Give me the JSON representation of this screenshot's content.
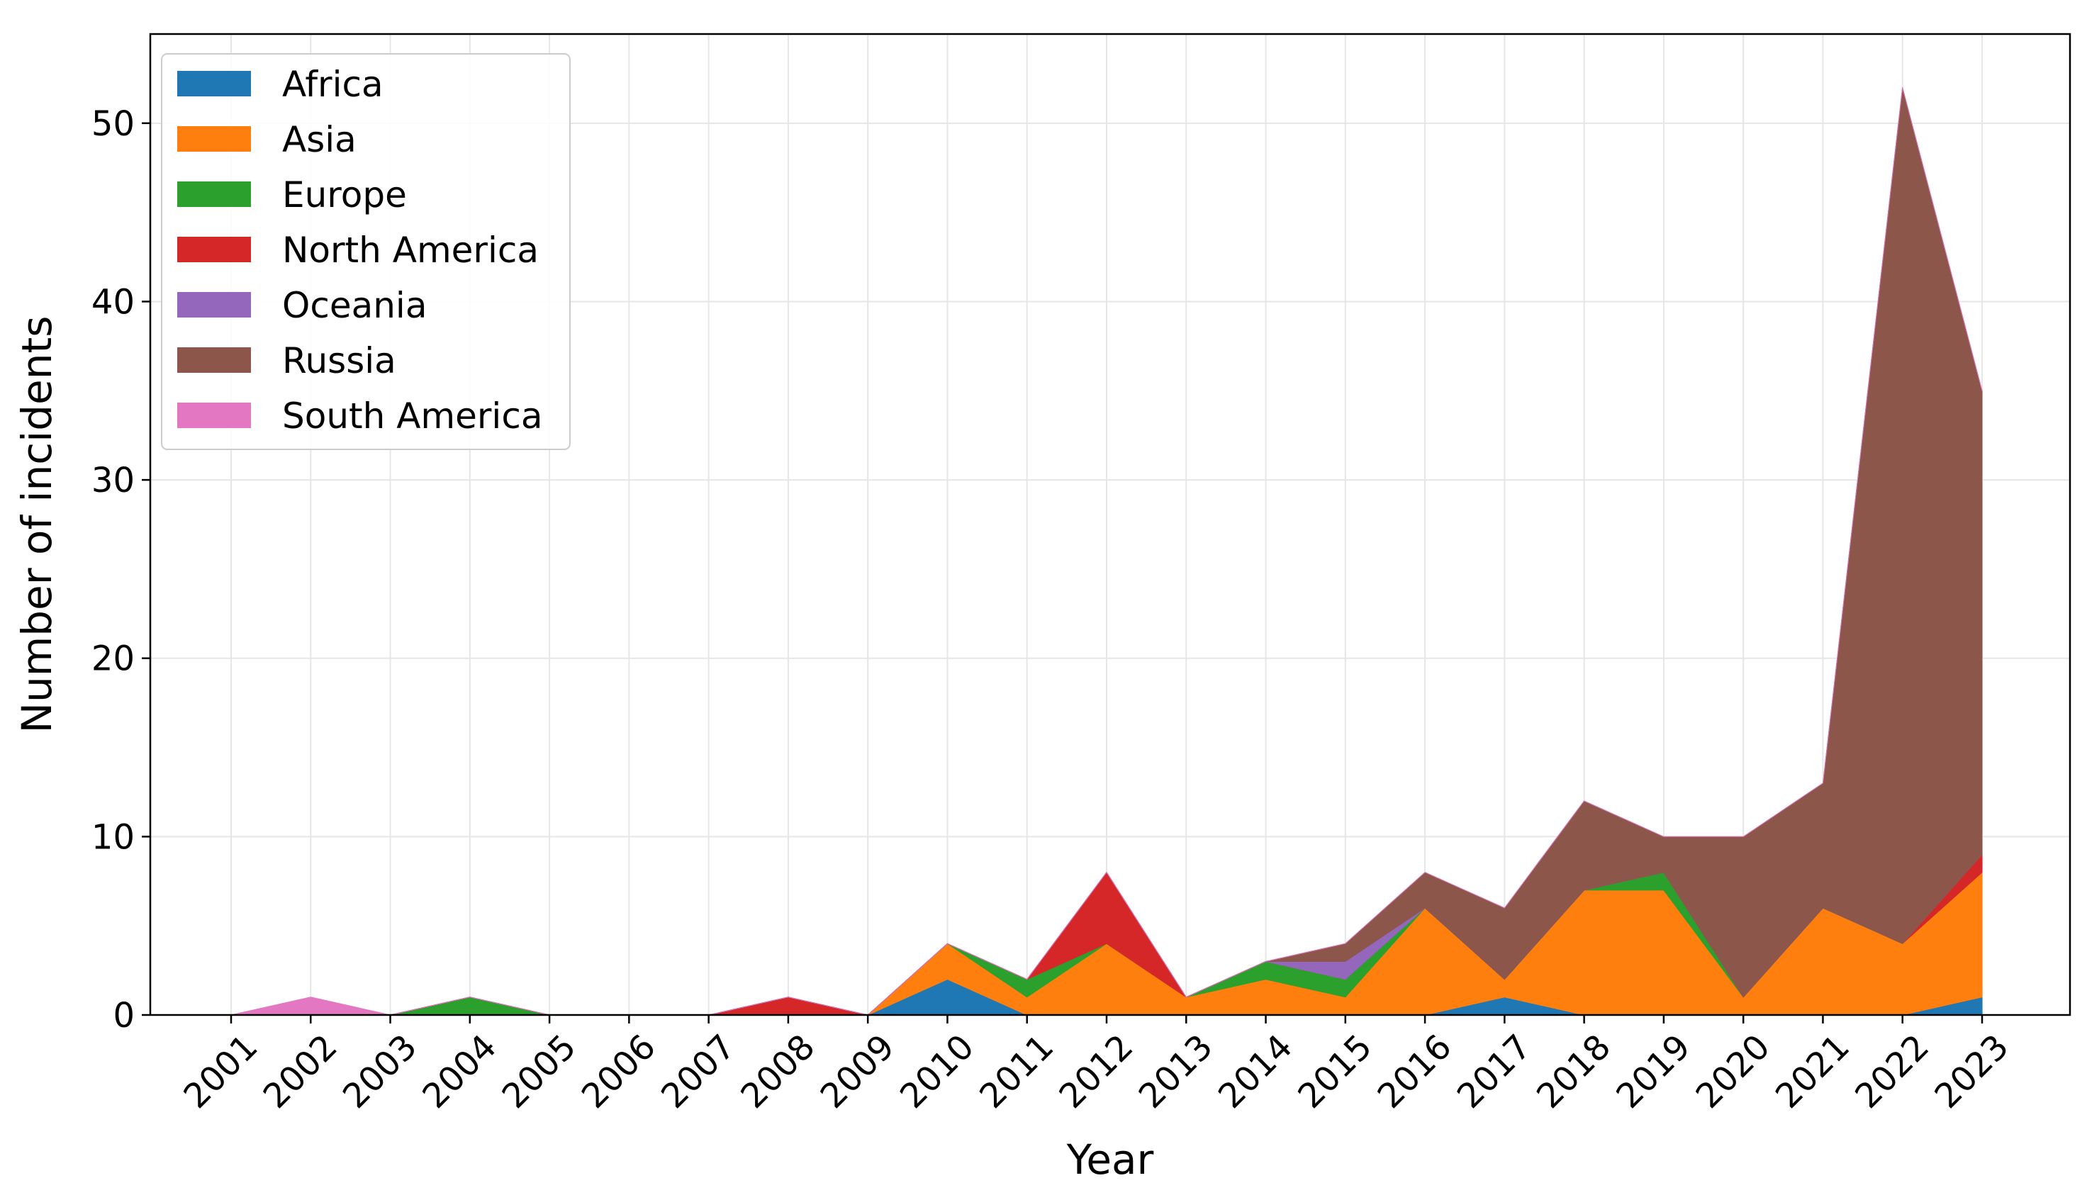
{
  "chart_data": {
    "type": "area",
    "stacked": true,
    "title": "",
    "xlabel": "Year",
    "ylabel": "Number of incidents",
    "x": [
      "2001",
      "2002",
      "2003",
      "2004",
      "2005",
      "2006",
      "2007",
      "2008",
      "2009",
      "2010",
      "2011",
      "2012",
      "2013",
      "2014",
      "2015",
      "2016",
      "2017",
      "2018",
      "2019",
      "2020",
      "2021",
      "2022",
      "2023"
    ],
    "ylim": [
      0,
      55
    ],
    "yticks": [
      0,
      10,
      20,
      30,
      40,
      50
    ],
    "grid": true,
    "legend_position": "top-left",
    "series": [
      {
        "name": "Africa",
        "color": "#1f77b4",
        "values": [
          0,
          0,
          0,
          0,
          0,
          0,
          0,
          0,
          0,
          2,
          0,
          0,
          0,
          0,
          0,
          0,
          1,
          0,
          0,
          0,
          0,
          0,
          1
        ]
      },
      {
        "name": "Asia",
        "color": "#ff7f0e",
        "values": [
          0,
          0,
          0,
          0,
          0,
          0,
          0,
          0,
          0,
          2,
          1,
          4,
          1,
          2,
          1,
          6,
          1,
          7,
          7,
          1,
          6,
          4,
          7
        ]
      },
      {
        "name": "Europe",
        "color": "#2ca02c",
        "values": [
          0,
          0,
          0,
          1,
          0,
          0,
          0,
          0,
          0,
          0,
          1,
          0,
          0,
          1,
          1,
          0,
          0,
          0,
          1,
          0,
          0,
          0,
          0
        ]
      },
      {
        "name": "North America",
        "color": "#d62728",
        "values": [
          0,
          0,
          0,
          0,
          0,
          0,
          0,
          1,
          0,
          0,
          0,
          4,
          0,
          0,
          0,
          0,
          0,
          0,
          0,
          0,
          0,
          0,
          1
        ]
      },
      {
        "name": "Oceania",
        "color": "#9467bd",
        "values": [
          0,
          0,
          0,
          0,
          0,
          0,
          0,
          0,
          0,
          0,
          0,
          0,
          0,
          0,
          1,
          0,
          0,
          0,
          0,
          0,
          0,
          0,
          0
        ]
      },
      {
        "name": "Russia",
        "color": "#8c564b",
        "values": [
          0,
          0,
          0,
          0,
          0,
          0,
          0,
          0,
          0,
          0,
          0,
          0,
          0,
          0,
          1,
          2,
          4,
          5,
          2,
          9,
          7,
          48,
          26
        ]
      },
      {
        "name": "South America",
        "color": "#e377c2",
        "values": [
          0,
          1,
          0,
          0,
          0,
          0,
          0,
          0,
          0,
          0,
          0,
          0,
          0,
          0,
          0,
          0,
          0,
          0,
          0,
          0,
          0,
          0,
          0
        ]
      }
    ]
  }
}
